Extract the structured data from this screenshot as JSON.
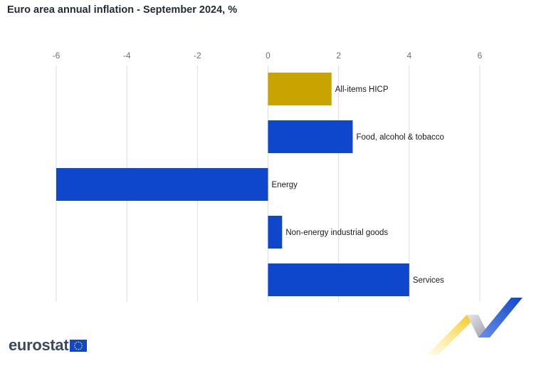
{
  "chart_data": {
    "type": "bar",
    "orientation": "horizontal",
    "title": "Euro area annual inflation - September 2024, %",
    "categories": [
      "All-items HICP",
      "Food, alcohol & tobacco",
      "Energy",
      "Non-energy industrial goods",
      "Services"
    ],
    "values": [
      1.8,
      2.4,
      -6.0,
      0.4,
      4.0
    ],
    "colors": [
      "#c9a400",
      "#0e47cb",
      "#0e47cb",
      "#0e47cb",
      "#0e47cb"
    ],
    "xlim": [
      -6,
      6
    ],
    "xticks": [
      -6,
      -4,
      -2,
      0,
      2,
      4,
      6
    ],
    "xlabel": "",
    "ylabel": "",
    "grid": true,
    "axis_position": "top"
  },
  "branding": {
    "logo_text": "eurostat",
    "flag_color": "#0e47cb",
    "star_color": "#ffdd00"
  }
}
